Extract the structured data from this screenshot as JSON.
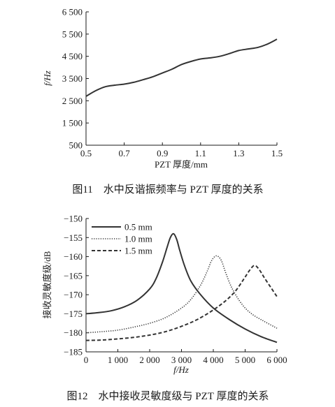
{
  "chart_data": [
    {
      "type": "line",
      "caption": "图11　水中反谐振频率与 PZT 厚度的关系",
      "xlabel": "PZT 厚度/mm",
      "ylabel": "f/Hz",
      "xlim": [
        0.5,
        1.5
      ],
      "ylim": [
        500,
        6500
      ],
      "xticks": [
        0.5,
        0.7,
        0.9,
        1.1,
        1.3,
        1.5
      ],
      "xtick_labels": [
        "0.5",
        "0.7",
        "0.9",
        "1.1",
        "1.3",
        "1.5"
      ],
      "yticks": [
        500,
        1500,
        2500,
        3500,
        4500,
        5500,
        6500
      ],
      "ytick_labels": [
        "500",
        "1 500",
        "2 500",
        "3 500",
        "4 500",
        "5 500",
        "6 500"
      ],
      "grid": false,
      "series": [
        {
          "x": [
            0.5,
            0.55,
            0.6,
            0.65,
            0.7,
            0.75,
            0.8,
            0.85,
            0.9,
            0.95,
            1.0,
            1.05,
            1.1,
            1.15,
            1.2,
            1.25,
            1.3,
            1.35,
            1.4,
            1.45,
            1.5
          ],
          "y": [
            2700,
            2950,
            3130,
            3200,
            3250,
            3330,
            3450,
            3580,
            3750,
            3920,
            4130,
            4270,
            4380,
            4430,
            4500,
            4620,
            4760,
            4830,
            4900,
            5050,
            5270
          ]
        }
      ]
    },
    {
      "type": "line",
      "caption": "图12　水中接收灵敏度级与 PZT 厚度的关系",
      "xlabel": "f/Hz",
      "ylabel": "接收灵敏度级/dB",
      "xlim": [
        0,
        6000
      ],
      "ylim": [
        -185,
        -150
      ],
      "xticks": [
        0,
        1000,
        2000,
        3000,
        4000,
        5000,
        6000
      ],
      "xtick_labels": [
        "0",
        "1 000",
        "2 000",
        "3 000",
        "4 000",
        "5 000",
        "6 000"
      ],
      "yticks": [
        -150,
        -155,
        -160,
        -165,
        -170,
        -175,
        -180,
        -185
      ],
      "ytick_labels": [
        "−150",
        "−155",
        "−160",
        "−165",
        "−170",
        "−175",
        "−180",
        "−185"
      ],
      "grid": false,
      "legend": "top-left",
      "series": [
        {
          "name": "0.5 mm",
          "style": "solid",
          "x": [
            0,
            400,
            800,
            1200,
            1600,
            2000,
            2200,
            2400,
            2550,
            2650,
            2750,
            2850,
            2950,
            3100,
            3300,
            3600,
            4000,
            4500,
            5000,
            5500,
            6000
          ],
          "y": [
            -175,
            -174.7,
            -174.2,
            -173.2,
            -171.5,
            -168.5,
            -165.8,
            -161.5,
            -157.5,
            -155,
            -154,
            -155.5,
            -158.5,
            -162.5,
            -166.5,
            -170,
            -173.5,
            -176.5,
            -179,
            -181,
            -182.5
          ]
        },
        {
          "name": "1.0 mm",
          "style": "dotted",
          "x": [
            0,
            500,
            1000,
            1500,
            2000,
            2500,
            3000,
            3300,
            3600,
            3800,
            3950,
            4100,
            4250,
            4400,
            4600,
            4900,
            5200,
            5600,
            6000
          ],
          "y": [
            -180,
            -179.7,
            -179.3,
            -178.5,
            -177.5,
            -176,
            -173.5,
            -171.2,
            -167.5,
            -164,
            -161,
            -159.8,
            -161,
            -164.5,
            -168.5,
            -172.5,
            -175,
            -177,
            -178.8
          ]
        },
        {
          "name": "1.5 mm",
          "style": "dashed",
          "x": [
            0,
            500,
            1000,
            1500,
            2000,
            2500,
            3000,
            3500,
            4000,
            4400,
            4700,
            4950,
            5150,
            5300,
            5450,
            5600,
            5800,
            6000
          ],
          "y": [
            -182,
            -181.9,
            -181.6,
            -181.2,
            -180.6,
            -179.7,
            -178.3,
            -176.5,
            -174,
            -171.5,
            -169,
            -166,
            -163.5,
            -162.3,
            -163.5,
            -165.5,
            -168,
            -170.5
          ]
        }
      ]
    }
  ]
}
